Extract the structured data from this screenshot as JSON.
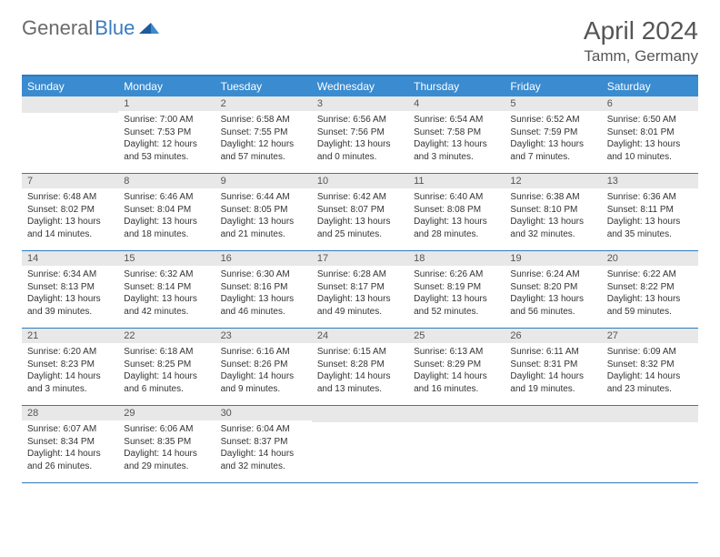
{
  "logo": {
    "text1": "General",
    "text2": "Blue"
  },
  "title": "April 2024",
  "location": "Tamm, Germany",
  "colors": {
    "header_bg": "#3a8bd0",
    "header_border": "#2d7bc0",
    "daynum_bg": "#e8e8e8",
    "text": "#444444",
    "title_text": "#555555",
    "logo_gray": "#6a6a6a",
    "logo_blue": "#3a7bbf"
  },
  "day_headers": [
    "Sunday",
    "Monday",
    "Tuesday",
    "Wednesday",
    "Thursday",
    "Friday",
    "Saturday"
  ],
  "weeks": [
    [
      {
        "num": "",
        "sunrise": "",
        "sunset": "",
        "daylight": ""
      },
      {
        "num": "1",
        "sunrise": "Sunrise: 7:00 AM",
        "sunset": "Sunset: 7:53 PM",
        "daylight": "Daylight: 12 hours and 53 minutes."
      },
      {
        "num": "2",
        "sunrise": "Sunrise: 6:58 AM",
        "sunset": "Sunset: 7:55 PM",
        "daylight": "Daylight: 12 hours and 57 minutes."
      },
      {
        "num": "3",
        "sunrise": "Sunrise: 6:56 AM",
        "sunset": "Sunset: 7:56 PM",
        "daylight": "Daylight: 13 hours and 0 minutes."
      },
      {
        "num": "4",
        "sunrise": "Sunrise: 6:54 AM",
        "sunset": "Sunset: 7:58 PM",
        "daylight": "Daylight: 13 hours and 3 minutes."
      },
      {
        "num": "5",
        "sunrise": "Sunrise: 6:52 AM",
        "sunset": "Sunset: 7:59 PM",
        "daylight": "Daylight: 13 hours and 7 minutes."
      },
      {
        "num": "6",
        "sunrise": "Sunrise: 6:50 AM",
        "sunset": "Sunset: 8:01 PM",
        "daylight": "Daylight: 13 hours and 10 minutes."
      }
    ],
    [
      {
        "num": "7",
        "sunrise": "Sunrise: 6:48 AM",
        "sunset": "Sunset: 8:02 PM",
        "daylight": "Daylight: 13 hours and 14 minutes."
      },
      {
        "num": "8",
        "sunrise": "Sunrise: 6:46 AM",
        "sunset": "Sunset: 8:04 PM",
        "daylight": "Daylight: 13 hours and 18 minutes."
      },
      {
        "num": "9",
        "sunrise": "Sunrise: 6:44 AM",
        "sunset": "Sunset: 8:05 PM",
        "daylight": "Daylight: 13 hours and 21 minutes."
      },
      {
        "num": "10",
        "sunrise": "Sunrise: 6:42 AM",
        "sunset": "Sunset: 8:07 PM",
        "daylight": "Daylight: 13 hours and 25 minutes."
      },
      {
        "num": "11",
        "sunrise": "Sunrise: 6:40 AM",
        "sunset": "Sunset: 8:08 PM",
        "daylight": "Daylight: 13 hours and 28 minutes."
      },
      {
        "num": "12",
        "sunrise": "Sunrise: 6:38 AM",
        "sunset": "Sunset: 8:10 PM",
        "daylight": "Daylight: 13 hours and 32 minutes."
      },
      {
        "num": "13",
        "sunrise": "Sunrise: 6:36 AM",
        "sunset": "Sunset: 8:11 PM",
        "daylight": "Daylight: 13 hours and 35 minutes."
      }
    ],
    [
      {
        "num": "14",
        "sunrise": "Sunrise: 6:34 AM",
        "sunset": "Sunset: 8:13 PM",
        "daylight": "Daylight: 13 hours and 39 minutes."
      },
      {
        "num": "15",
        "sunrise": "Sunrise: 6:32 AM",
        "sunset": "Sunset: 8:14 PM",
        "daylight": "Daylight: 13 hours and 42 minutes."
      },
      {
        "num": "16",
        "sunrise": "Sunrise: 6:30 AM",
        "sunset": "Sunset: 8:16 PM",
        "daylight": "Daylight: 13 hours and 46 minutes."
      },
      {
        "num": "17",
        "sunrise": "Sunrise: 6:28 AM",
        "sunset": "Sunset: 8:17 PM",
        "daylight": "Daylight: 13 hours and 49 minutes."
      },
      {
        "num": "18",
        "sunrise": "Sunrise: 6:26 AM",
        "sunset": "Sunset: 8:19 PM",
        "daylight": "Daylight: 13 hours and 52 minutes."
      },
      {
        "num": "19",
        "sunrise": "Sunrise: 6:24 AM",
        "sunset": "Sunset: 8:20 PM",
        "daylight": "Daylight: 13 hours and 56 minutes."
      },
      {
        "num": "20",
        "sunrise": "Sunrise: 6:22 AM",
        "sunset": "Sunset: 8:22 PM",
        "daylight": "Daylight: 13 hours and 59 minutes."
      }
    ],
    [
      {
        "num": "21",
        "sunrise": "Sunrise: 6:20 AM",
        "sunset": "Sunset: 8:23 PM",
        "daylight": "Daylight: 14 hours and 3 minutes."
      },
      {
        "num": "22",
        "sunrise": "Sunrise: 6:18 AM",
        "sunset": "Sunset: 8:25 PM",
        "daylight": "Daylight: 14 hours and 6 minutes."
      },
      {
        "num": "23",
        "sunrise": "Sunrise: 6:16 AM",
        "sunset": "Sunset: 8:26 PM",
        "daylight": "Daylight: 14 hours and 9 minutes."
      },
      {
        "num": "24",
        "sunrise": "Sunrise: 6:15 AM",
        "sunset": "Sunset: 8:28 PM",
        "daylight": "Daylight: 14 hours and 13 minutes."
      },
      {
        "num": "25",
        "sunrise": "Sunrise: 6:13 AM",
        "sunset": "Sunset: 8:29 PM",
        "daylight": "Daylight: 14 hours and 16 minutes."
      },
      {
        "num": "26",
        "sunrise": "Sunrise: 6:11 AM",
        "sunset": "Sunset: 8:31 PM",
        "daylight": "Daylight: 14 hours and 19 minutes."
      },
      {
        "num": "27",
        "sunrise": "Sunrise: 6:09 AM",
        "sunset": "Sunset: 8:32 PM",
        "daylight": "Daylight: 14 hours and 23 minutes."
      }
    ],
    [
      {
        "num": "28",
        "sunrise": "Sunrise: 6:07 AM",
        "sunset": "Sunset: 8:34 PM",
        "daylight": "Daylight: 14 hours and 26 minutes."
      },
      {
        "num": "29",
        "sunrise": "Sunrise: 6:06 AM",
        "sunset": "Sunset: 8:35 PM",
        "daylight": "Daylight: 14 hours and 29 minutes."
      },
      {
        "num": "30",
        "sunrise": "Sunrise: 6:04 AM",
        "sunset": "Sunset: 8:37 PM",
        "daylight": "Daylight: 14 hours and 32 minutes."
      },
      {
        "num": "",
        "sunrise": "",
        "sunset": "",
        "daylight": ""
      },
      {
        "num": "",
        "sunrise": "",
        "sunset": "",
        "daylight": ""
      },
      {
        "num": "",
        "sunrise": "",
        "sunset": "",
        "daylight": ""
      },
      {
        "num": "",
        "sunrise": "",
        "sunset": "",
        "daylight": ""
      }
    ]
  ]
}
